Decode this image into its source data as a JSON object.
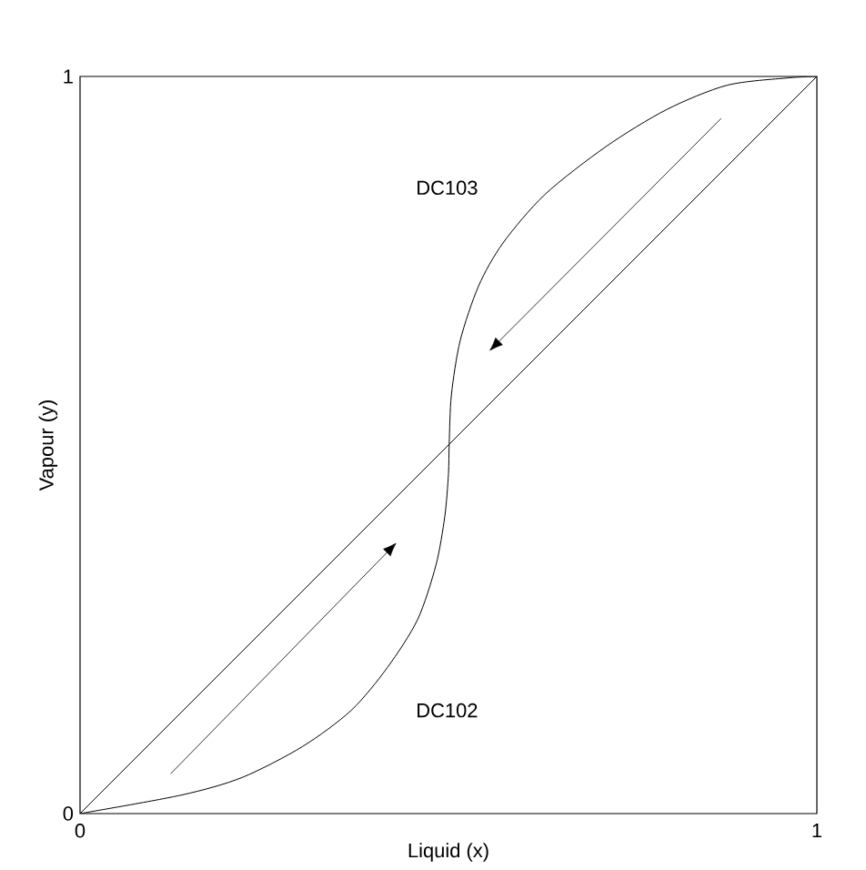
{
  "chart_data": {
    "type": "line",
    "xlabel": "Liquid (x)",
    "ylabel": "Vapour (y)",
    "xlim": [
      0,
      1
    ],
    "ylim": [
      0,
      1
    ],
    "xticks": [
      0,
      1
    ],
    "yticks": [
      0,
      1
    ],
    "marker": "none",
    "line_style": "solid",
    "series": [
      {
        "color": "#000000",
        "x": [
          0,
          1
        ],
        "values": [
          0,
          1
        ]
      },
      {
        "color": "#000000",
        "x": [
          0,
          0.137,
          0.22,
          0.302,
          0.368,
          0.417,
          0.458,
          0.483,
          0.495,
          0.5,
          0.501,
          0.504,
          0.516,
          0.541,
          0.574,
          0.631,
          0.714,
          0.796,
          0.878,
          0.961,
          1
        ],
        "values": [
          0,
          0.025,
          0.049,
          0.091,
          0.14,
          0.198,
          0.263,
          0.337,
          0.403,
          0.461,
          0.502,
          0.568,
          0.642,
          0.716,
          0.774,
          0.84,
          0.905,
          0.955,
          0.988,
          0.998,
          1
        ]
      }
    ],
    "annotations": [
      "DC103",
      "DC102"
    ]
  }
}
